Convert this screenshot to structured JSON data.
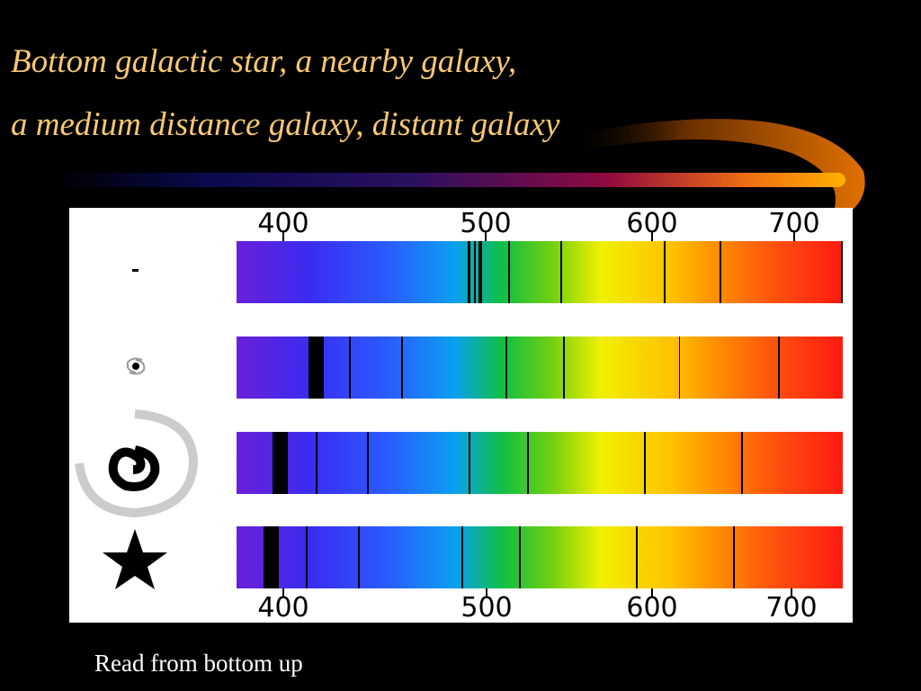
{
  "title": {
    "lines": [
      "Bottom galactic star, a nearby galaxy,",
      "a medium distance galaxy, distant galaxy"
    ]
  },
  "figure": {
    "top_scale": [
      "400",
      "500",
      "600",
      "700"
    ],
    "bottom_scale": [
      "400",
      "500",
      "600",
      "700"
    ]
  },
  "caption": "Read from bottom up"
}
